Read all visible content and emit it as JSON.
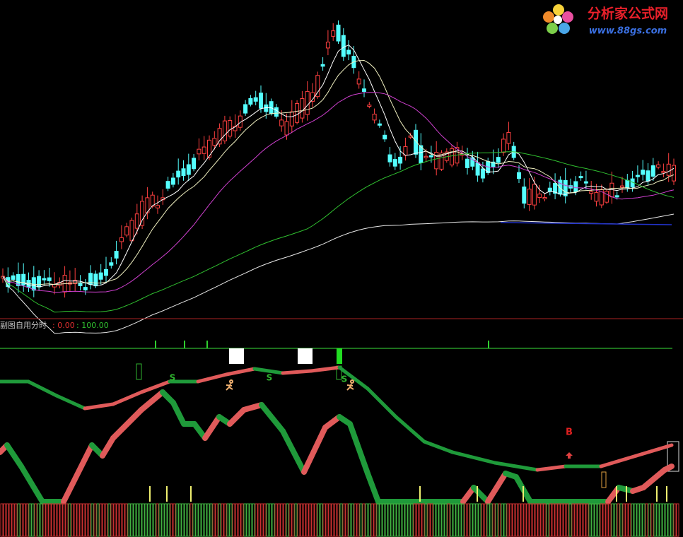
{
  "logo": {
    "name": "分析家公式网",
    "url": "www.88gs.com"
  },
  "sub_panel": {
    "title": "副图自用分时",
    "low": ": 0.00",
    "high": ": 100.00",
    "signals": [
      "S",
      "S",
      "S",
      "B"
    ]
  }
}
